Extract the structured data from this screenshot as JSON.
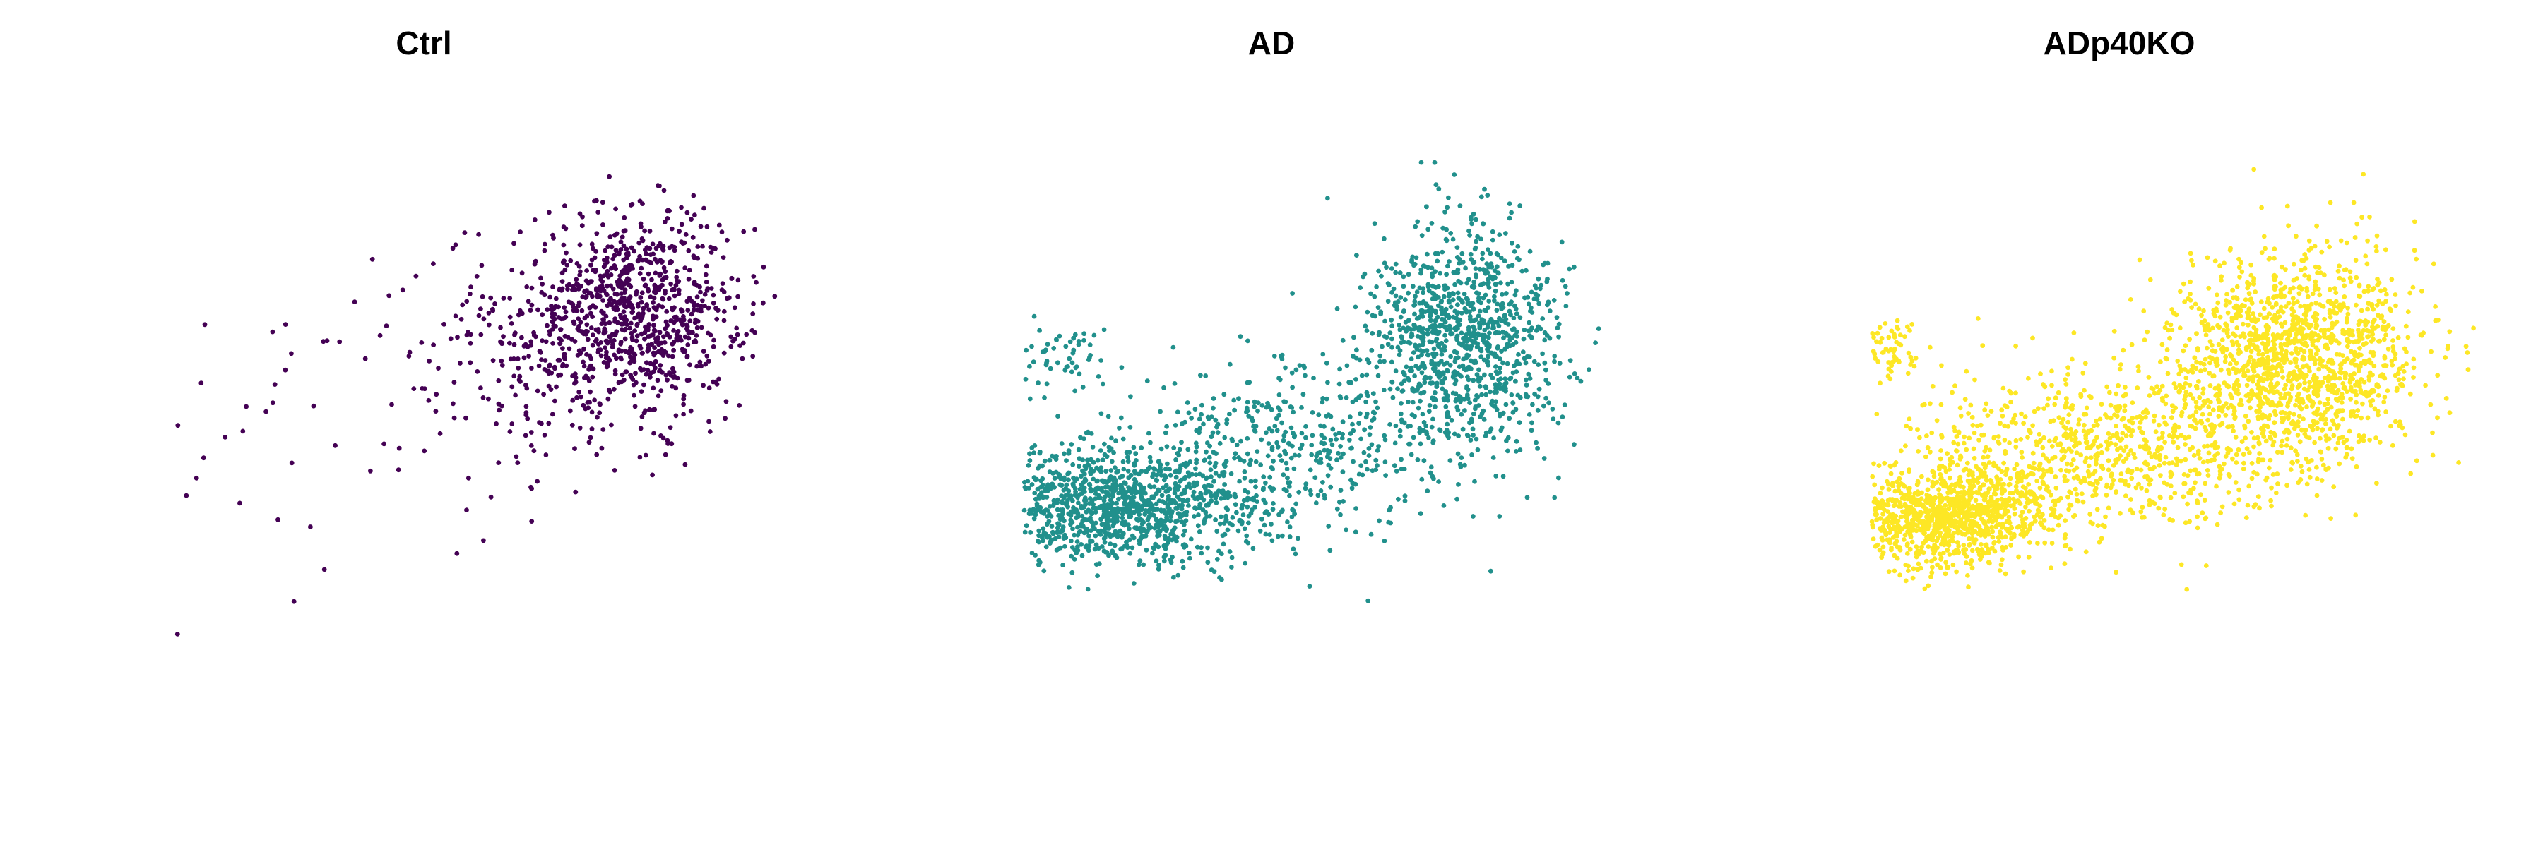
{
  "chart_data": [
    {
      "type": "scatter",
      "title": "Ctrl",
      "color": "#440154",
      "grid": false,
      "axes_visible": false,
      "point_count_estimate": 1100,
      "clusters": [
        {
          "cx": 0.9,
          "cy": 0.6,
          "sx": 0.22,
          "sy": 0.26,
          "weight": 0.72
        },
        {
          "cx": 0.55,
          "cy": 0.38,
          "sx": 0.3,
          "sy": 0.3,
          "weight": 0.24
        },
        {
          "cx": -0.55,
          "cy": -0.1,
          "sx": 0.4,
          "sy": 0.45,
          "weight": 0.04
        }
      ],
      "xlim": [
        -1.0,
        1.5
      ],
      "ylim": [
        -1.5,
        1.5
      ]
    },
    {
      "type": "scatter",
      "title": "AD",
      "color": "#21908C",
      "grid": false,
      "axes_visible": false,
      "point_count_estimate": 2600,
      "clusters": [
        {
          "cx": -0.6,
          "cy": -0.45,
          "sx": 0.28,
          "sy": 0.15,
          "weight": 0.42
        },
        {
          "cx": 0.1,
          "cy": -0.1,
          "sx": 0.4,
          "sy": 0.25,
          "weight": 0.18
        },
        {
          "cx": 0.8,
          "cy": 0.45,
          "sx": 0.2,
          "sy": 0.3,
          "weight": 0.38
        },
        {
          "cx": -0.85,
          "cy": 0.35,
          "sx": 0.1,
          "sy": 0.1,
          "weight": 0.02
        }
      ],
      "xlim": [
        -1.0,
        1.5
      ],
      "ylim": [
        -1.5,
        1.5
      ]
    },
    {
      "type": "scatter",
      "title": "ADp40KO",
      "color": "#FDE725",
      "grid": false,
      "axes_visible": false,
      "point_count_estimate": 3300,
      "clusters": [
        {
          "cx": -0.7,
          "cy": -0.5,
          "sx": 0.22,
          "sy": 0.13,
          "weight": 0.3
        },
        {
          "cx": -0.1,
          "cy": -0.15,
          "sx": 0.4,
          "sy": 0.22,
          "weight": 0.25
        },
        {
          "cx": 0.75,
          "cy": 0.35,
          "sx": 0.25,
          "sy": 0.28,
          "weight": 0.43
        },
        {
          "cx": -0.95,
          "cy": 0.4,
          "sx": 0.08,
          "sy": 0.08,
          "weight": 0.02
        }
      ],
      "xlim": [
        -1.0,
        1.5
      ],
      "ylim": [
        -1.5,
        1.5
      ]
    }
  ]
}
